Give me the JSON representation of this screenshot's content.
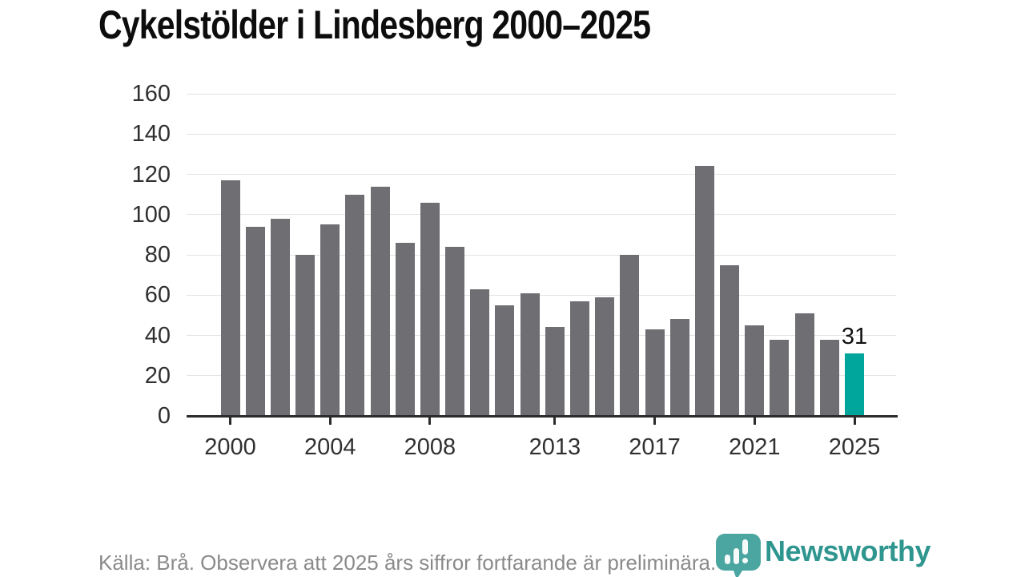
{
  "chart_data": {
    "type": "bar",
    "title": "Cykelstölder i Lindesberg 2000–2025",
    "categories": [
      "2000",
      "2001",
      "2002",
      "2003",
      "2004",
      "2005",
      "2006",
      "2007",
      "2008",
      "2009",
      "2010",
      "2011",
      "2012",
      "2013",
      "2014",
      "2015",
      "2016",
      "2017",
      "2018",
      "2019",
      "2020",
      "2021",
      "2022",
      "2023",
      "2024",
      "2025"
    ],
    "values": [
      117,
      94,
      98,
      80,
      95,
      110,
      114,
      86,
      106,
      84,
      63,
      55,
      61,
      44,
      57,
      59,
      80,
      43,
      48,
      124,
      75,
      45,
      38,
      51,
      38,
      31
    ],
    "xlabel": "",
    "ylabel": "",
    "ylim": [
      0,
      160
    ],
    "y_ticks": [
      0,
      20,
      40,
      60,
      80,
      100,
      120,
      140,
      160
    ],
    "x_tick_labels": [
      "2000",
      "2004",
      "2008",
      "2013",
      "2017",
      "2021",
      "2025"
    ],
    "x_tick_indices": [
      0,
      4,
      8,
      13,
      17,
      21,
      25
    ],
    "grid": true,
    "legend": false,
    "bar_color": "#6e6e73",
    "highlight": {
      "index": 25,
      "label": "31",
      "color": "#00a59c"
    }
  },
  "footer": {
    "source_text": "Källa: Brå. Observera att 2025 års siffror fortfarande är preliminära.",
    "logo_text": "Newsworthy"
  },
  "colors": {
    "title": "#0d0d0d",
    "axis": "#2b2b2b",
    "gridline": "#e3e3e3",
    "tick_label": "#303030",
    "source_text": "#8a8a8a",
    "logo_pin": "#4ba6a1",
    "logo_wordmark": "#2f968f"
  }
}
